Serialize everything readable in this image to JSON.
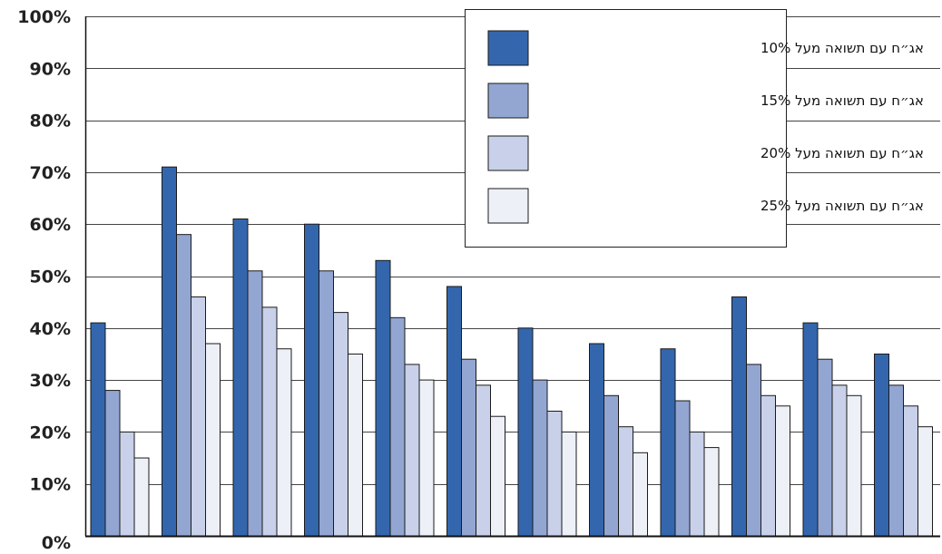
{
  "chart_data": {
    "type": "bar",
    "title": "",
    "xlabel": "",
    "ylabel": "",
    "ylim": [
      0,
      100
    ],
    "yticks": [
      0,
      10,
      20,
      30,
      40,
      50,
      60,
      70,
      80,
      90,
      100
    ],
    "ytick_labels": [
      "0%",
      "10%",
      "20%",
      "30%",
      "40%",
      "50%",
      "60%",
      "70%",
      "80%",
      "90%",
      "100%"
    ],
    "grid": true,
    "legend_position": "top-right",
    "categories": [
      "",
      "",
      "",
      "",
      "",
      "",
      "",
      "",
      "",
      "",
      "",
      ""
    ],
    "series": [
      {
        "name": "אג״ח עם תשואה מעל 10%",
        "color": "#3466ad",
        "values": [
          41,
          71,
          61,
          60,
          53,
          48,
          40,
          37,
          36,
          46,
          41,
          35
        ]
      },
      {
        "name": "אג״ח עם תשואה מעל 15%",
        "color": "#93a6d2",
        "values": [
          28,
          58,
          51,
          51,
          42,
          34,
          30,
          27,
          26,
          33,
          34,
          29
        ]
      },
      {
        "name": "אג״ח עם תשואה מעל 20%",
        "color": "#c8d1e9",
        "values": [
          20,
          46,
          44,
          43,
          33,
          29,
          24,
          21,
          20,
          27,
          29,
          25
        ]
      },
      {
        "name": "אג״ח עם תשואה מעל 25%",
        "color": "#eef0f8",
        "values": [
          15,
          37,
          36,
          35,
          30,
          23,
          20,
          16,
          17,
          25,
          27,
          21
        ]
      }
    ]
  }
}
